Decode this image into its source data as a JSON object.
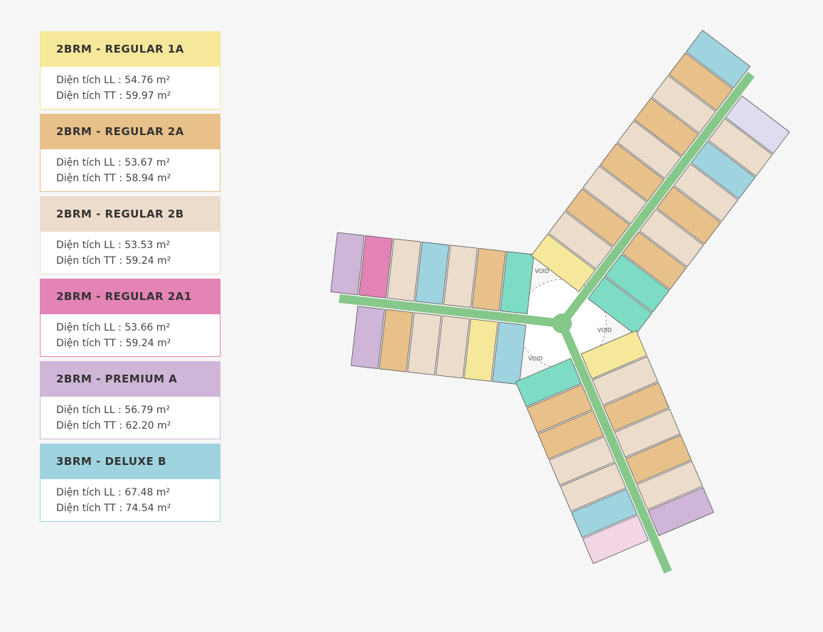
{
  "legend": [
    {
      "title": "2BRM - REGULAR 1A",
      "ll": "Diện tích LL : 54.76 m²",
      "tt": "Diện tích TT : 59.97 m²"
    },
    {
      "title": "2BRM - REGULAR 2A",
      "ll": "Diện tích LL : 53.67 m²",
      "tt": "Diện tích TT : 58.94 m²"
    },
    {
      "title": "2BRM - REGULAR 2B",
      "ll": "Diện tích LL : 53.53 m²",
      "tt": "Diện tích TT : 59.24 m²"
    },
    {
      "title": "2BRM - REGULAR 2A1",
      "ll": "Diện tích LL : 53.66 m²",
      "tt": "Diện tích TT : 59.24 m²"
    },
    {
      "title": "2BRM - PREMIUM A",
      "ll": "Diện tích LL : 56.79 m²",
      "tt": "Diện tích TT : 62.20 m²"
    },
    {
      "title": "3BRM - DELUXE B",
      "ll": "Diện tích LL : 67.48 m²",
      "tt": "Diện tích TT : 74.54 m²"
    }
  ],
  "floor_plan": {
    "void_labels": [
      "VOID",
      "VOID",
      "VOID"
    ]
  }
}
